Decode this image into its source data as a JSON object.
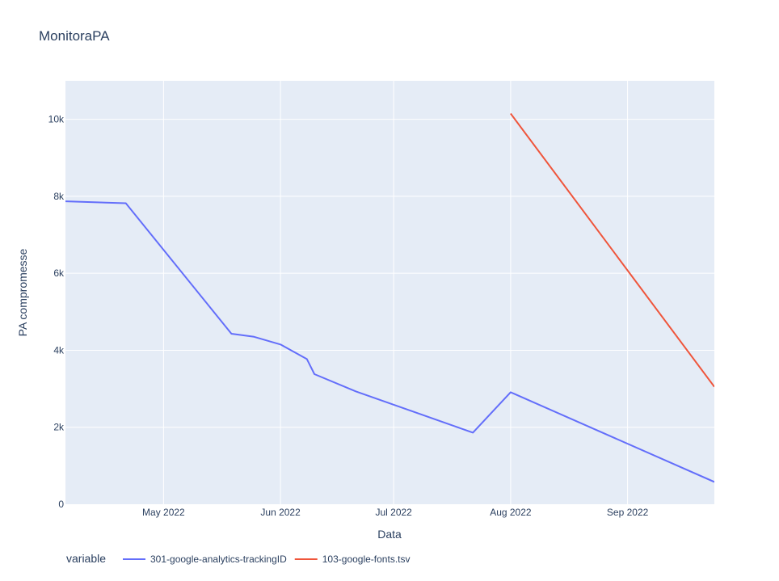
{
  "chart_data": {
    "type": "line",
    "title": "MonitoraPA",
    "xlabel": "Data",
    "ylabel": "PA compromesse",
    "xlim": [
      "2022-04-05",
      "2022-09-24"
    ],
    "ylim": [
      0,
      11000
    ],
    "x_ticks": [
      {
        "date": "2022-05-01",
        "label": "May 2022"
      },
      {
        "date": "2022-06-01",
        "label": "Jun 2022"
      },
      {
        "date": "2022-07-01",
        "label": "Jul 2022"
      },
      {
        "date": "2022-08-01",
        "label": "Aug 2022"
      },
      {
        "date": "2022-09-01",
        "label": "Sep 2022"
      }
    ],
    "y_ticks": [
      {
        "value": 0,
        "label": "0"
      },
      {
        "value": 2000,
        "label": "2k"
      },
      {
        "value": 4000,
        "label": "4k"
      },
      {
        "value": 6000,
        "label": "6k"
      },
      {
        "value": 8000,
        "label": "8k"
      },
      {
        "value": 10000,
        "label": "10k"
      }
    ],
    "grid": true,
    "legend": {
      "title": "variable",
      "placement": "bottom-left"
    },
    "series": [
      {
        "name": "301-google-analytics-trackingID",
        "color": "#636efa",
        "points": [
          {
            "x": "2022-04-05",
            "y": 7870
          },
          {
            "x": "2022-04-21",
            "y": 7820
          },
          {
            "x": "2022-05-19",
            "y": 4430
          },
          {
            "x": "2022-05-25",
            "y": 4350
          },
          {
            "x": "2022-06-01",
            "y": 4150
          },
          {
            "x": "2022-06-08",
            "y": 3770
          },
          {
            "x": "2022-06-10",
            "y": 3380
          },
          {
            "x": "2022-06-21",
            "y": 2930
          },
          {
            "x": "2022-07-22",
            "y": 1860
          },
          {
            "x": "2022-08-01",
            "y": 2910
          },
          {
            "x": "2022-09-24",
            "y": 580
          }
        ]
      },
      {
        "name": "103-google-fonts.tsv",
        "color": "#ef553b",
        "points": [
          {
            "x": "2022-08-01",
            "y": 10150
          },
          {
            "x": "2022-09-24",
            "y": 3050
          }
        ]
      }
    ]
  }
}
